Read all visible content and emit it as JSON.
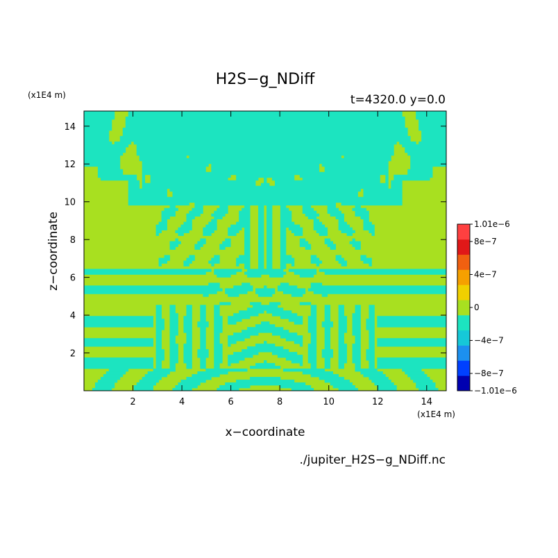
{
  "chart_data": {
    "type": "heatmap",
    "title": "H2S−g_NDiff",
    "subtitle": "t=4320.0 y=0.0",
    "xlabel": "x−coordinate",
    "ylabel": "z−coordinate",
    "x_unit": "(x1E4 m)",
    "y_unit": "(x1E4 m)",
    "source_file": "./jupiter_H2S−g_NDiff.nc",
    "xlim": [
      0,
      14.8
    ],
    "ylim": [
      0,
      14.8
    ],
    "x_ticks": [
      2,
      4,
      6,
      8,
      10,
      12,
      14
    ],
    "y_ticks": [
      2,
      4,
      6,
      8,
      10,
      12,
      14
    ],
    "colorbar": {
      "levels": [
        -1.01e-06,
        -8e-07,
        -6e-07,
        -4e-07,
        -2e-07,
        0,
        2e-07,
        4e-07,
        6e-07,
        8e-07,
        1.01e-06
      ],
      "colors": [
        "#0000b0",
        "#0040ff",
        "#1c90f0",
        "#16c8d8",
        "#1ce4c0",
        "#a8e020",
        "#f0d000",
        "#f5a000",
        "#f06010",
        "#e01818",
        "#ff4040"
      ],
      "tick_labels": [
        "1.01e−6",
        "8e−7",
        "4e−7",
        "0",
        "−4e−7",
        "−8e−7",
        "−1.01e−6"
      ]
    },
    "field_colors": {
      "positive_small": "#a8e020",
      "negative_small": "#1ce4c0"
    }
  }
}
